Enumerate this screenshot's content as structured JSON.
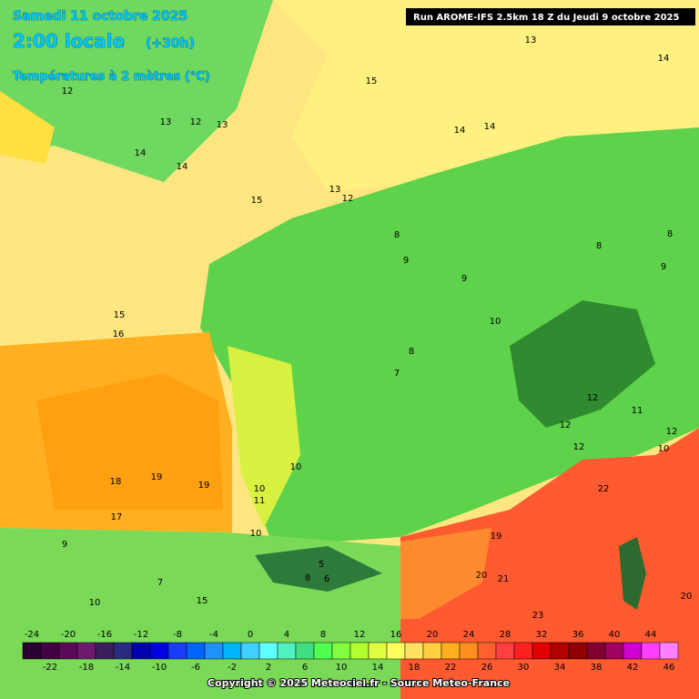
{
  "header": {
    "date": "Samedi 11 octobre 2025",
    "time": "2:00 locale",
    "lead": "(+30h)",
    "variable": "Températures à 2 mètres (°C)",
    "run": "Run AROME-IFS 2.5km 18 Z du Jeudi 9 octobre 2025"
  },
  "map_labels": [
    "13",
    "14",
    "15",
    "12",
    "13",
    "12",
    "13",
    "14",
    "14",
    "15",
    "14",
    "14",
    "12",
    "13",
    "15",
    "16",
    "18",
    "19",
    "19",
    "17",
    "10",
    "10",
    "11",
    "10",
    "9",
    "8",
    "9",
    "10",
    "8",
    "7",
    "22",
    "20",
    "21",
    "23",
    "20",
    "19",
    "12",
    "12",
    "12",
    "11",
    "10",
    "12",
    "5",
    "8",
    "6",
    "9",
    "7",
    "10",
    "15",
    "8",
    "9",
    "8"
  ],
  "colorbar": {
    "colors": [
      "#2a0030",
      "#440044",
      "#5a0a5a",
      "#6e1a6e",
      "#3a1f5c",
      "#2a2a80",
      "#0000b0",
      "#0000e0",
      "#1a3cff",
      "#0064ff",
      "#1e90ff",
      "#00b4ff",
      "#40d0ff",
      "#60ffff",
      "#50f0c0",
      "#40e080",
      "#50ff50",
      "#80ff40",
      "#b0ff30",
      "#e0ff40",
      "#ffff60",
      "#ffe060",
      "#ffd040",
      "#ffb020",
      "#ff9020",
      "#ff6030",
      "#ff4040",
      "#ff2020",
      "#e00000",
      "#b00000",
      "#900000",
      "#800030",
      "#a00060",
      "#d000d0",
      "#ff40ff",
      "#ff80ff"
    ],
    "top_labels": [
      -24,
      -20,
      -16,
      -12,
      -8,
      -4,
      0,
      4,
      8,
      12,
      16,
      20,
      24,
      28,
      32,
      36,
      40,
      44
    ],
    "bottom_labels": [
      -22,
      -18,
      -14,
      -10,
      -6,
      -2,
      2,
      6,
      10,
      14,
      18,
      22,
      26,
      30,
      34,
      38,
      42,
      46
    ]
  },
  "footer": {
    "copyright": "Copyright © 2025 Meteociel.fr - Source Meteo-France"
  }
}
